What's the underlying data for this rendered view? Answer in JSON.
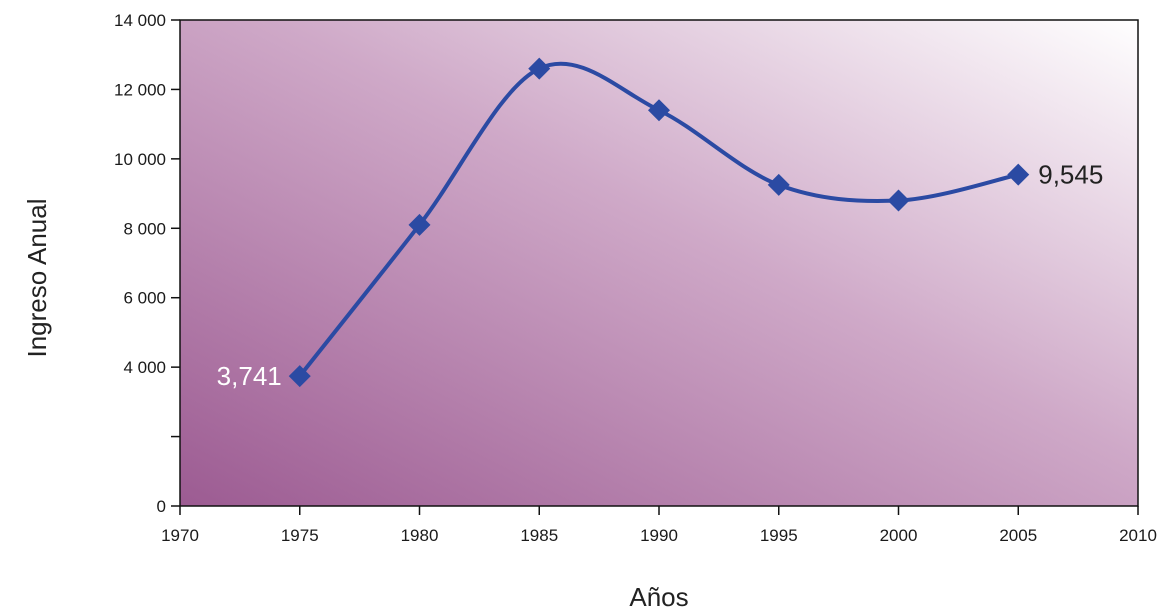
{
  "chart_data": {
    "type": "line",
    "title": "",
    "xlabel": "Años",
    "ylabel": "Ingreso Anual",
    "xlim": [
      1970,
      2010
    ],
    "ylim": [
      0,
      14000
    ],
    "x_ticks": [
      1970,
      1975,
      1980,
      1985,
      1990,
      1995,
      2000,
      2005,
      2010
    ],
    "x_tick_labels": [
      "1970",
      "1975",
      "1980",
      "1985",
      "1990",
      "1995",
      "2000",
      "2005",
      "2010"
    ],
    "y_ticks": [
      0,
      2000,
      4000,
      6000,
      8000,
      10000,
      12000,
      14000
    ],
    "y_tick_labels": [
      "0",
      "",
      "4 000",
      "6 000",
      "8 000",
      "10 000",
      "12 000",
      "14 000"
    ],
    "grid": false,
    "legend": "none",
    "series": [
      {
        "x": [
          1975,
          1980,
          1985,
          1990,
          1995,
          2000,
          2005
        ],
        "values": [
          3741,
          8100,
          12600,
          11400,
          9250,
          8800,
          9545
        ],
        "color": "#2b4aa3"
      }
    ],
    "data_labels": [
      {
        "x": 1975,
        "y": 3741,
        "text": "3,741",
        "color": "#ffffff",
        "side": "left"
      },
      {
        "x": 2005,
        "y": 9545,
        "text": "9,545",
        "color": "#222222",
        "side": "right"
      }
    ],
    "background_gradient": {
      "from": "#9c5b92",
      "to": "#ffffff",
      "direction": "bottom-left to top-right"
    }
  }
}
